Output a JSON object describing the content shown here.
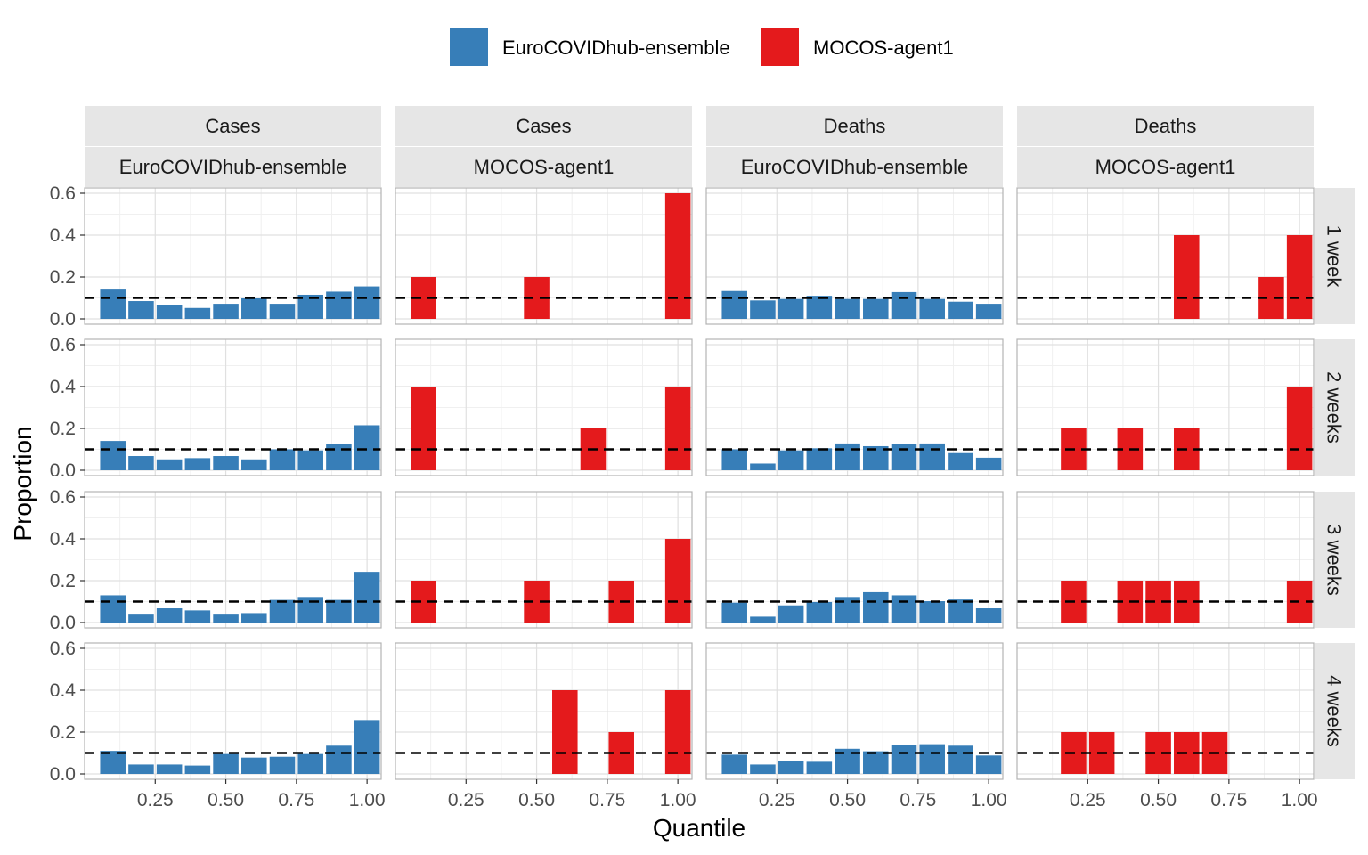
{
  "chart_data": {
    "type": "bar",
    "xlabel": "Quantile",
    "ylabel": "Proportion",
    "xlim": [
      0,
      1.05
    ],
    "ylim": [
      0,
      0.6
    ],
    "x_ticks": [
      0.25,
      0.5,
      0.75,
      1.0
    ],
    "x_tick_labels": [
      "0.25",
      "0.50",
      "0.75",
      "1.00"
    ],
    "y_ticks": [
      0,
      0.2,
      0.4,
      0.6
    ],
    "y_tick_labels": [
      "0.0",
      "0.2",
      "0.4",
      "0.6"
    ],
    "bin_centers": [
      0.1,
      0.2,
      0.3,
      0.4,
      0.5,
      0.6,
      0.7,
      0.8,
      0.9,
      1.0
    ],
    "reference_line": 0.1,
    "legend": {
      "position": "top",
      "entries": [
        {
          "name": "EuroCOVIDhub-ensemble",
          "color": "#377EB8"
        },
        {
          "name": "MOCOS-agent1",
          "color": "#E41A1C"
        }
      ]
    },
    "columns": [
      {
        "target": "Cases",
        "model": "EuroCOVIDhub-ensemble",
        "color": "#377EB8"
      },
      {
        "target": "Cases",
        "model": "MOCOS-agent1",
        "color": "#E41A1C"
      },
      {
        "target": "Deaths",
        "model": "EuroCOVIDhub-ensemble",
        "color": "#377EB8"
      },
      {
        "target": "Deaths",
        "model": "MOCOS-agent1",
        "color": "#E41A1C"
      }
    ],
    "rows": [
      "1 week",
      "2 weeks",
      "3 weeks",
      "4 weeks"
    ],
    "panels": [
      [
        [
          0.14,
          0.085,
          0.068,
          0.052,
          0.072,
          0.098,
          0.072,
          0.115,
          0.13,
          0.155
        ],
        [
          0.2,
          0,
          0,
          0,
          0.2,
          0,
          0,
          0,
          0,
          0.6
        ],
        [
          0.133,
          0.088,
          0.095,
          0.11,
          0.095,
          0.095,
          0.128,
          0.095,
          0.082,
          0.072
        ],
        [
          0,
          0,
          0,
          0,
          0,
          0.4,
          0,
          0,
          0.2,
          0.4
        ]
      ],
      [
        [
          0.14,
          0.068,
          0.052,
          0.058,
          0.068,
          0.052,
          0.1,
          0.095,
          0.125,
          0.215
        ],
        [
          0.4,
          0,
          0,
          0,
          0,
          0,
          0.2,
          0,
          0,
          0.4
        ],
        [
          0.1,
          0.032,
          0.095,
          0.105,
          0.128,
          0.115,
          0.125,
          0.128,
          0.082,
          0.06
        ],
        [
          0,
          0.2,
          0,
          0.2,
          0,
          0.2,
          0,
          0,
          0,
          0.4
        ]
      ],
      [
        [
          0.13,
          0.042,
          0.068,
          0.058,
          0.042,
          0.045,
          0.108,
          0.122,
          0.108,
          0.242
        ],
        [
          0.2,
          0,
          0,
          0,
          0.2,
          0,
          0,
          0.2,
          0,
          0.4
        ],
        [
          0.095,
          0.028,
          0.082,
          0.098,
          0.122,
          0.145,
          0.13,
          0.102,
          0.11,
          0.068
        ],
        [
          0,
          0.2,
          0,
          0.2,
          0.2,
          0.2,
          0,
          0,
          0,
          0.2
        ]
      ],
      [
        [
          0.11,
          0.045,
          0.045,
          0.04,
          0.095,
          0.078,
          0.082,
          0.095,
          0.135,
          0.258
        ],
        [
          0,
          0,
          0,
          0,
          0,
          0.4,
          0,
          0.2,
          0,
          0.4
        ],
        [
          0.092,
          0.045,
          0.062,
          0.058,
          0.12,
          0.108,
          0.138,
          0.142,
          0.135,
          0.088
        ],
        [
          0,
          0.2,
          0.2,
          0,
          0.2,
          0.2,
          0.2,
          0,
          0,
          0
        ]
      ]
    ]
  }
}
